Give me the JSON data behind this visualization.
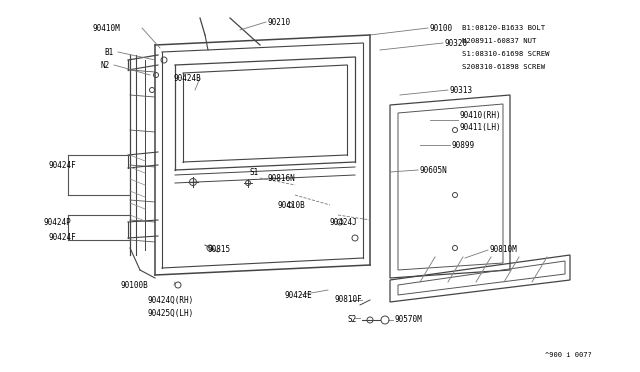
{
  "background_color": "#ffffff",
  "line_color": "#555555",
  "text_color": "#000000",
  "fig_width": 6.4,
  "fig_height": 3.72,
  "legend_lines": [
    "B1:08120-B1633 BOLT",
    "N208911-60837 NUT",
    "S1:08310-61698 SCREW",
    "S208310-61898 SCREW"
  ],
  "diagram_note": "^900 i 007?"
}
